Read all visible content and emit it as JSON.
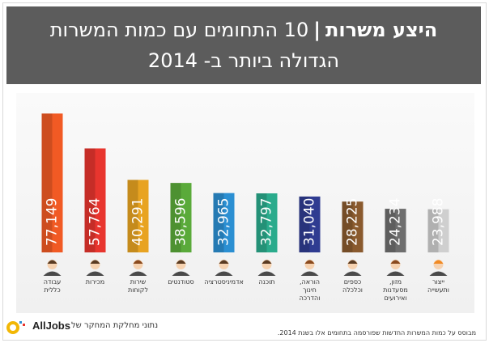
{
  "header": {
    "brand": "היצע משרות",
    "separator": "|",
    "title_part1": "10 התחומים עם כמות המשרות",
    "title_part2": "הגדולה ביותר ב- 2014"
  },
  "footer": {
    "note": "מבוסס על כמות המשרות החדשות שפורסמה בתחומים אלו בשנת 2014.",
    "source": "נתוני מחלקת המחקר של",
    "logo_text": "AllJobs"
  },
  "chart_data": {
    "type": "bar",
    "title": "10 התחומים עם כמות המשרות הגדולה ביותר ב- 2014",
    "categories": [
      "עבודה כללית",
      "מכירות",
      "שירות לקוחות",
      "סטודנטים",
      "אדמיניסטרציה",
      "תוכנה",
      "הוראה, חינוך והדרכה",
      "כספים וכלכלה",
      "מזון, מסעדנות ואירועים",
      "ייצור ותעשייה"
    ],
    "value_labels": [
      "77,149",
      "57,764",
      "40,291",
      "38,596",
      "32,965",
      "32,797",
      "31,040",
      "28,225",
      "24,234",
      "23,988"
    ],
    "values": [
      77149,
      57764,
      40291,
      38596,
      32965,
      32797,
      31040,
      28225,
      24234,
      23988
    ],
    "colors": [
      "#f15a24",
      "#e8352e",
      "#e8a321",
      "#5aaa3a",
      "#2b8fd2",
      "#2aab8c",
      "#2f3c91",
      "#8a5a2e",
      "#6e6e6e",
      "#cfcfcf"
    ],
    "icons": [
      "worker-icon",
      "sales-icon",
      "customer-service-icon",
      "student-icon",
      "admin-icon",
      "programmer-icon",
      "teacher-icon",
      "finance-icon",
      "waiter-icon",
      "factory-worker-icon"
    ],
    "ylim": [
      0,
      80000
    ],
    "grid": false
  }
}
